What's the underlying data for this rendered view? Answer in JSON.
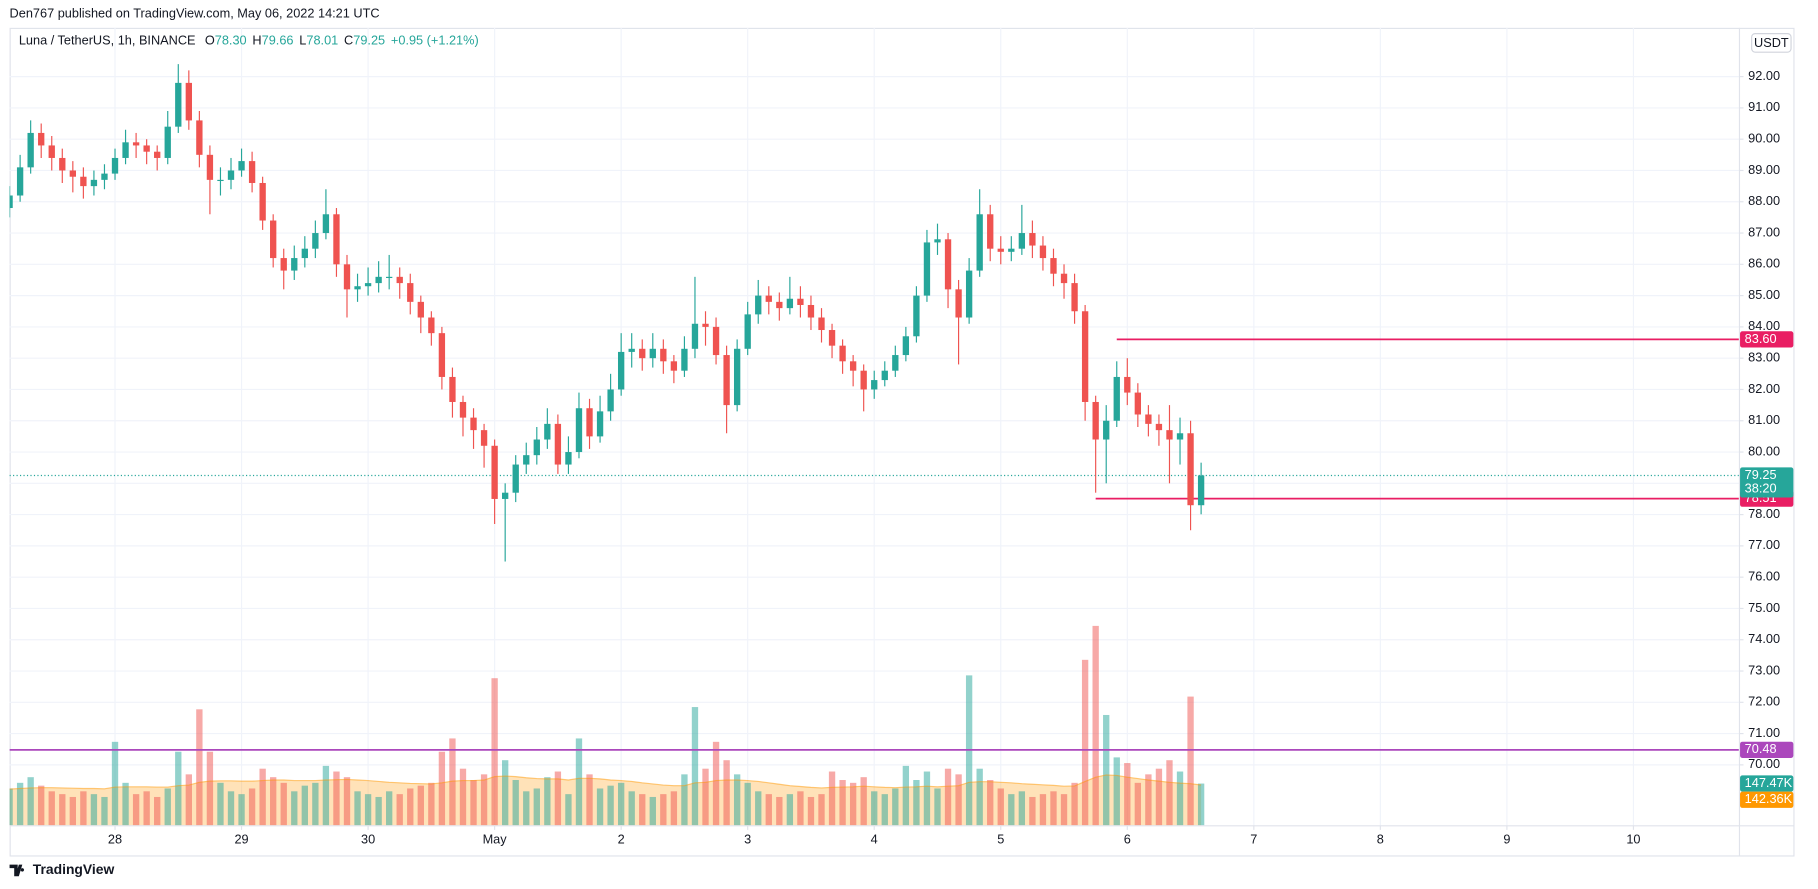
{
  "header": {
    "byline": "Den767 published on TradingView.com, May 06, 2022 14:21 UTC",
    "symbol": "Luna / TetherUS, 1h, BINANCE",
    "quote": [
      {
        "key": "O",
        "value": "78.30"
      },
      {
        "key": "H",
        "value": "79.66"
      },
      {
        "key": "L",
        "value": "78.01"
      },
      {
        "key": "C",
        "value": "79.25"
      }
    ],
    "change": "+0.95 (+1.21%)"
  },
  "footer": {
    "brand": "TradingView"
  },
  "chart_data": {
    "type": "candlestick",
    "currency": "USDT",
    "grid": true,
    "up_color": "#26a69a",
    "down_color": "#ef5350",
    "x": [
      0,
      2,
      4,
      6,
      8,
      10,
      12,
      14,
      16,
      18,
      20,
      22,
      24,
      26,
      28,
      30,
      32,
      34,
      36,
      38,
      40,
      42,
      44,
      46,
      48,
      50,
      52,
      54,
      56,
      58,
      60,
      62,
      64,
      66,
      68,
      70,
      72,
      74,
      76,
      78,
      80,
      82,
      84,
      86,
      88,
      90,
      92,
      94,
      96,
      98,
      100,
      102,
      104,
      106,
      108,
      110,
      112,
      114,
      116,
      118,
      120,
      122,
      124,
      126,
      128,
      130,
      132,
      134,
      136,
      138,
      140,
      142,
      144,
      146,
      148,
      150,
      152,
      154,
      156,
      158,
      160,
      162,
      164,
      166,
      168,
      170,
      172,
      174,
      176,
      178,
      180,
      182,
      184,
      186,
      188,
      190,
      192,
      194,
      196,
      198,
      200,
      202,
      204,
      206,
      208,
      210,
      212,
      214,
      216,
      218,
      220,
      222,
      224,
      226
    ],
    "open": [
      87.8,
      88.2,
      89.1,
      90.2,
      89.8,
      89.4,
      89.0,
      88.8,
      88.5,
      88.7,
      88.9,
      89.4,
      89.9,
      89.8,
      89.6,
      89.4,
      90.4,
      91.8,
      90.6,
      89.5,
      88.7,
      88.7,
      89.0,
      89.3,
      88.6,
      87.4,
      86.2,
      85.8,
      86.2,
      86.5,
      87.0,
      87.6,
      86.0,
      85.2,
      85.3,
      85.4,
      85.6,
      85.6,
      85.4,
      84.8,
      84.3,
      83.8,
      82.4,
      81.6,
      81.1,
      80.7,
      80.2,
      78.5,
      78.7,
      79.6,
      79.9,
      80.4,
      80.9,
      79.6,
      80.0,
      81.4,
      80.5,
      81.3,
      82.0,
      83.2,
      83.3,
      83.0,
      83.3,
      82.9,
      82.6,
      83.3,
      84.1,
      84.0,
      83.1,
      81.5,
      83.3,
      84.4,
      85.0,
      84.8,
      84.6,
      84.9,
      84.7,
      84.3,
      83.9,
      83.4,
      82.9,
      82.6,
      82.0,
      82.3,
      82.6,
      83.1,
      83.7,
      85.0,
      86.7,
      86.8,
      85.2,
      84.3,
      85.8,
      87.6,
      86.5,
      86.4,
      86.5,
      87.0,
      86.6,
      86.2,
      85.7,
      85.4,
      84.5,
      81.6,
      80.4,
      81.0,
      82.4,
      81.9,
      81.2,
      80.9,
      80.7,
      80.4,
      80.6,
      78.3
    ],
    "high": [
      88.5,
      89.5,
      90.6,
      90.5,
      90.1,
      89.7,
      89.3,
      89.1,
      89.0,
      89.2,
      89.7,
      90.3,
      90.2,
      90.0,
      89.8,
      90.9,
      92.4,
      92.2,
      90.9,
      89.8,
      89.1,
      89.4,
      89.7,
      89.6,
      88.8,
      87.6,
      86.5,
      86.6,
      86.9,
      87.4,
      88.4,
      87.8,
      86.3,
      85.7,
      85.9,
      86.1,
      86.3,
      85.9,
      85.7,
      85.0,
      84.5,
      84.0,
      82.7,
      81.8,
      81.4,
      80.9,
      80.4,
      79.0,
      79.9,
      80.3,
      80.8,
      81.4,
      81.2,
      80.5,
      81.9,
      81.7,
      81.8,
      82.5,
      83.8,
      83.8,
      83.6,
      83.8,
      83.6,
      83.1,
      83.7,
      85.6,
      84.5,
      84.3,
      83.4,
      83.6,
      84.8,
      85.5,
      85.3,
      85.1,
      85.6,
      85.3,
      85.0,
      84.6,
      84.1,
      83.6,
      83.1,
      82.8,
      82.6,
      82.9,
      83.4,
      84.0,
      85.3,
      87.1,
      87.3,
      87.0,
      85.5,
      86.2,
      88.4,
      87.9,
      86.9,
      86.9,
      87.9,
      87.4,
      86.9,
      86.5,
      86.0,
      85.7,
      84.7,
      81.8,
      81.5,
      82.9,
      83.0,
      82.2,
      81.5,
      81.2,
      81.5,
      81.1,
      81.0,
      79.66
    ],
    "low": [
      87.5,
      88.0,
      88.9,
      89.4,
      89.0,
      88.6,
      88.3,
      88.1,
      88.2,
      88.4,
      88.7,
      89.2,
      89.4,
      89.2,
      89.0,
      89.2,
      90.2,
      90.3,
      89.1,
      87.6,
      88.2,
      88.4,
      88.8,
      88.3,
      87.1,
      85.9,
      85.2,
      85.5,
      85.9,
      86.2,
      86.8,
      85.6,
      84.3,
      84.8,
      85.0,
      85.1,
      85.2,
      84.9,
      84.4,
      83.8,
      83.4,
      82.0,
      81.1,
      80.5,
      80.1,
      79.5,
      77.7,
      76.5,
      78.4,
      79.3,
      79.6,
      80.1,
      79.3,
      79.3,
      79.8,
      80.1,
      80.3,
      81.0,
      81.8,
      82.7,
      82.6,
      82.7,
      82.5,
      82.2,
      82.4,
      83.0,
      83.4,
      82.8,
      80.6,
      81.3,
      83.1,
      84.1,
      84.4,
      84.2,
      84.4,
      84.3,
      83.9,
      83.5,
      83.0,
      82.5,
      82.1,
      81.3,
      81.7,
      82.1,
      82.4,
      82.9,
      83.5,
      84.8,
      86.3,
      84.6,
      82.8,
      84.1,
      85.6,
      86.1,
      86.0,
      86.1,
      86.3,
      86.2,
      85.8,
      85.3,
      84.9,
      84.1,
      81.0,
      78.7,
      79.0,
      80.8,
      81.5,
      80.8,
      80.5,
      80.2,
      79.0,
      79.6,
      77.5,
      78.01
    ],
    "close": [
      88.2,
      89.1,
      90.2,
      89.8,
      89.4,
      89.0,
      88.8,
      88.5,
      88.7,
      88.9,
      89.4,
      89.9,
      89.8,
      89.6,
      89.4,
      90.4,
      91.8,
      90.6,
      89.5,
      88.7,
      88.7,
      89.0,
      89.3,
      88.6,
      87.4,
      86.2,
      85.8,
      86.2,
      86.5,
      87.0,
      87.6,
      86.0,
      85.2,
      85.3,
      85.4,
      85.6,
      85.6,
      85.4,
      84.8,
      84.3,
      83.8,
      82.4,
      81.6,
      81.1,
      80.7,
      80.2,
      78.5,
      78.7,
      79.6,
      79.9,
      80.4,
      80.9,
      79.6,
      80.0,
      81.4,
      80.5,
      81.3,
      82.0,
      83.2,
      83.3,
      83.0,
      83.3,
      82.9,
      82.6,
      83.3,
      84.1,
      84.0,
      83.1,
      81.5,
      83.3,
      84.4,
      85.0,
      84.8,
      84.6,
      84.9,
      84.7,
      84.3,
      83.9,
      83.4,
      82.9,
      82.6,
      82.0,
      82.3,
      82.6,
      83.1,
      83.7,
      85.0,
      86.7,
      86.8,
      85.2,
      84.3,
      85.8,
      87.6,
      86.5,
      86.4,
      86.5,
      87.0,
      86.6,
      86.2,
      85.7,
      85.4,
      84.5,
      81.6,
      80.4,
      81.0,
      82.4,
      81.9,
      81.2,
      80.9,
      80.7,
      80.4,
      80.6,
      78.3,
      79.25
    ],
    "volume": [
      130000,
      150000,
      170000,
      140000,
      120000,
      110000,
      100000,
      120000,
      110000,
      100000,
      295000,
      150000,
      110000,
      120000,
      100000,
      130000,
      260000,
      180000,
      410000,
      260000,
      150000,
      120000,
      110000,
      130000,
      200000,
      170000,
      150000,
      120000,
      140000,
      150000,
      210000,
      190000,
      170000,
      120000,
      110000,
      100000,
      120000,
      110000,
      130000,
      140000,
      150000,
      260000,
      307000,
      200000,
      160000,
      180000,
      520000,
      230000,
      160000,
      120000,
      130000,
      170000,
      190000,
      110000,
      307000,
      180000,
      130000,
      140000,
      150000,
      120000,
      110000,
      100000,
      110000,
      120000,
      180000,
      418000,
      200000,
      295000,
      230000,
      180000,
      150000,
      120000,
      110000,
      100000,
      110000,
      120000,
      100000,
      110000,
      190000,
      160000,
      150000,
      170000,
      120000,
      110000,
      130000,
      210000,
      160000,
      190000,
      130000,
      200000,
      180000,
      530000,
      200000,
      160000,
      130000,
      110000,
      120000,
      100000,
      110000,
      120000,
      110000,
      150000,
      585000,
      705000,
      390000,
      240000,
      220000,
      150000,
      180000,
      200000,
      230000,
      190000,
      455000,
      147470
    ],
    "volume_ma": [
      128000,
      130000,
      132000,
      133000,
      133000,
      132000,
      131000,
      130000,
      130000,
      129000,
      135000,
      136000,
      136000,
      136000,
      135000,
      135000,
      140000,
      142000,
      152000,
      156000,
      157000,
      157000,
      156000,
      156000,
      158000,
      160000,
      160000,
      158000,
      158000,
      158000,
      160000,
      161000,
      162000,
      160000,
      158000,
      155000,
      152000,
      150000,
      148000,
      147000,
      146000,
      150000,
      156000,
      158000,
      158000,
      160000,
      172000,
      174000,
      172000,
      168000,
      165000,
      164000,
      164000,
      160000,
      166000,
      166000,
      164000,
      160000,
      158000,
      155000,
      150000,
      146000,
      142000,
      140000,
      140000,
      150000,
      152000,
      158000,
      160000,
      160000,
      158000,
      155000,
      150000,
      145000,
      140000,
      137000,
      134000,
      132000,
      134000,
      135000,
      136000,
      138000,
      136000,
      134000,
      133000,
      135000,
      136000,
      138000,
      136000,
      138000,
      140000,
      152000,
      154000,
      154000,
      152000,
      150000,
      147000,
      145000,
      143000,
      141000,
      138000,
      139000,
      155000,
      170000,
      178000,
      176000,
      170000,
      165000,
      160000,
      156000,
      152000,
      149000,
      147000,
      142360
    ],
    "volume_label": "147.47K",
    "volume_ma_label": "142.36K",
    "volume_ma_color": "#ff9800",
    "xlim": [
      0,
      328
    ],
    "ylim": [
      68.07,
      93.56
    ],
    "y2lim": [
      0,
      2820000
    ],
    "xticks": [
      {
        "value": 20,
        "label": "28"
      },
      {
        "value": 44,
        "label": "29"
      },
      {
        "value": 68,
        "label": "30"
      },
      {
        "value": 92,
        "label": "May"
      },
      {
        "value": 116,
        "label": "2"
      },
      {
        "value": 140,
        "label": "3"
      },
      {
        "value": 164,
        "label": "4"
      },
      {
        "value": 188,
        "label": "5"
      },
      {
        "value": 212,
        "label": "6"
      },
      {
        "value": 236,
        "label": "7"
      },
      {
        "value": 260,
        "label": "8"
      },
      {
        "value": 284,
        "label": "9"
      },
      {
        "value": 308,
        "label": "10"
      }
    ],
    "yticks": [
      {
        "value": 70,
        "label": "70.00"
      },
      {
        "value": 71,
        "label": "71.00"
      },
      {
        "value": 72,
        "label": "72.00"
      },
      {
        "value": 73,
        "label": "73.00"
      },
      {
        "value": 74,
        "label": "74.00"
      },
      {
        "value": 75,
        "label": "75.00"
      },
      {
        "value": 76,
        "label": "76.00"
      },
      {
        "value": 77,
        "label": "77.00"
      },
      {
        "value": 78,
        "label": "78.00"
      },
      {
        "value": 79,
        "label": "79.00"
      },
      {
        "value": 80,
        "label": "80.00"
      },
      {
        "value": 81,
        "label": "81.00"
      },
      {
        "value": 82,
        "label": "82.00"
      },
      {
        "value": 83,
        "label": "83.00"
      },
      {
        "value": 84,
        "label": "84.00"
      },
      {
        "value": 85,
        "label": "85.00"
      },
      {
        "value": 86,
        "label": "86.00"
      },
      {
        "value": 87,
        "label": "87.00"
      },
      {
        "value": 88,
        "label": "88.00"
      },
      {
        "value": 89,
        "label": "89.00"
      },
      {
        "value": 90,
        "label": "90.00"
      },
      {
        "value": 91,
        "label": "91.00"
      },
      {
        "value": 92,
        "label": "92.00"
      }
    ],
    "lines": [
      {
        "value": 83.6,
        "label": "83.60",
        "color": "#e91e63",
        "from": 210
      },
      {
        "value": 78.51,
        "label": "78.51",
        "color": "#e91e63",
        "from": 206
      },
      {
        "value": 70.48,
        "label": "70.48",
        "color": "#ab47bc"
      }
    ],
    "last_price": {
      "value": 79.25,
      "label": "79.25",
      "countdown": "38:20"
    }
  }
}
